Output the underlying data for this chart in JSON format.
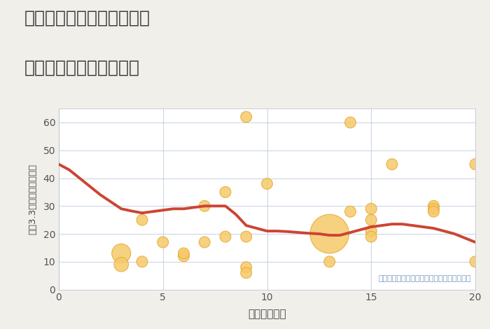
{
  "title_line1": "兵庫県豊岡市出石町中村の",
  "title_line2": "駅距離別中古戸建て価格",
  "xlabel": "駅距離（分）",
  "ylabel": "坪（3.3㎡）単価（万円）",
  "xlim": [
    0,
    20
  ],
  "ylim": [
    0,
    65
  ],
  "xticks": [
    0,
    5,
    10,
    15,
    20
  ],
  "yticks": [
    0,
    10,
    20,
    30,
    40,
    50,
    60
  ],
  "background_color": "#f0efea",
  "plot_bg_color": "#ffffff",
  "bubble_color": "#f5c96a",
  "bubble_edge_color": "#e8a830",
  "line_color": "#cc4433",
  "annotation": "円の大きさは、取引のあった物件面積を示す",
  "scatter_x": [
    3,
    3,
    4,
    4,
    5,
    6,
    6,
    7,
    7,
    8,
    8,
    9,
    9,
    9,
    9,
    10,
    13,
    13,
    14,
    14,
    15,
    15,
    15,
    15,
    16,
    18,
    18,
    18,
    20,
    20
  ],
  "scatter_y": [
    13,
    9,
    25,
    10,
    17,
    12,
    13,
    30,
    17,
    35,
    19,
    62,
    8,
    19,
    6,
    38,
    20,
    10,
    60,
    28,
    29,
    21,
    19,
    25,
    45,
    30,
    29,
    28,
    45,
    10
  ],
  "scatter_size": [
    380,
    220,
    130,
    130,
    130,
    130,
    130,
    130,
    130,
    130,
    130,
    130,
    130,
    130,
    130,
    130,
    1600,
    130,
    130,
    130,
    130,
    130,
    130,
    130,
    130,
    130,
    130,
    130,
    130,
    130
  ],
  "line_x": [
    0,
    0.5,
    1,
    1.5,
    2,
    2.5,
    3,
    3.5,
    4,
    4.5,
    5,
    5.5,
    6,
    6.5,
    7,
    7.5,
    8,
    8.5,
    9,
    9.5,
    10,
    10.5,
    11,
    11.5,
    12,
    12.5,
    13,
    13.5,
    14,
    14.5,
    15,
    15.5,
    16,
    16.5,
    17,
    17.5,
    18,
    18.5,
    19,
    19.5,
    20
  ],
  "line_y": [
    45,
    43,
    40,
    37,
    34,
    31.5,
    29,
    28.2,
    27.5,
    28,
    28.5,
    29,
    29,
    29.5,
    30,
    30,
    30,
    27,
    23,
    22,
    21,
    21,
    20.8,
    20.5,
    20.2,
    20,
    19.5,
    19.5,
    20.5,
    21.5,
    22.5,
    23,
    23.5,
    23.5,
    23,
    22.5,
    22,
    21,
    20,
    18.5,
    17
  ]
}
